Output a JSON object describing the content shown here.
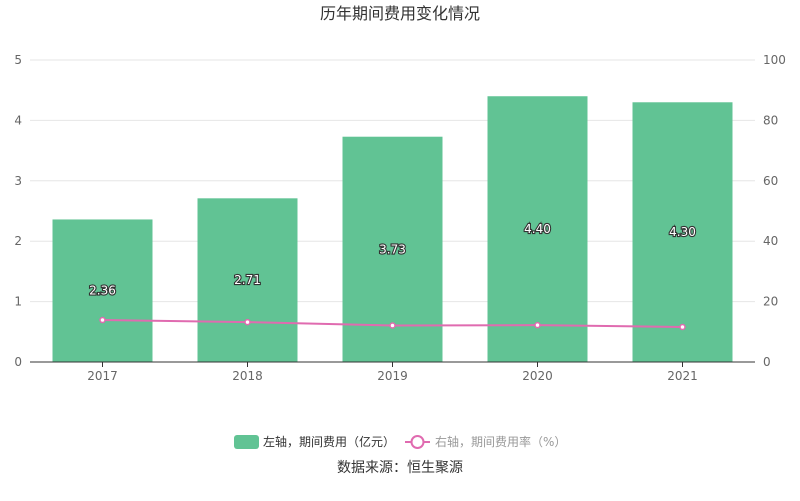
{
  "chart_data": {
    "type": "bar",
    "title": "历年期间费用变化情况",
    "categories": [
      "2017",
      "2018",
      "2019",
      "2020",
      "2021"
    ],
    "series": [
      {
        "name": "左轴，期间费用（亿元）",
        "type": "bar",
        "axis": "left",
        "values": [
          2.36,
          2.71,
          3.73,
          4.4,
          4.3
        ],
        "labels": [
          "2.36",
          "2.71",
          "3.73",
          "4.40",
          "4.30"
        ],
        "color": "#61c394"
      },
      {
        "name": "右轴，期间费用率（%）",
        "type": "line",
        "axis": "right",
        "values": [
          13.9,
          13.2,
          12.1,
          12.2,
          11.6
        ],
        "color": "#e06bb0"
      }
    ],
    "y_left": {
      "range": [
        0,
        5
      ],
      "ticks": [
        "0",
        "1",
        "2",
        "3",
        "4",
        "5"
      ]
    },
    "y_right": {
      "range": [
        0,
        100
      ],
      "ticks": [
        "0",
        "20",
        "40",
        "60",
        "80",
        "100"
      ]
    },
    "grid": true,
    "legend_position": "bottom"
  },
  "source": "数据来源：恒生聚源",
  "colors": {
    "bar": "#61c394",
    "line": "#e06bb0",
    "grid": "#e6e6e6",
    "axis": "#333333"
  }
}
